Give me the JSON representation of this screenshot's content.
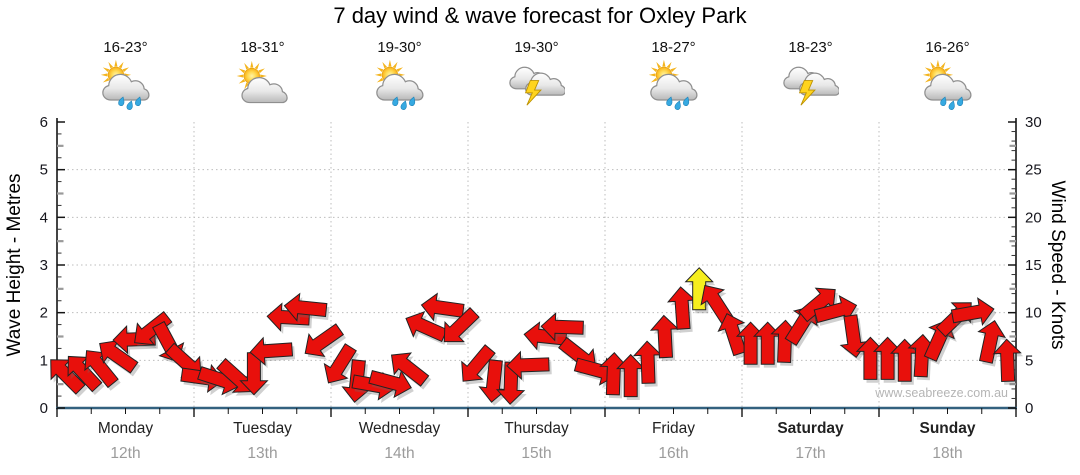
{
  "title": "7 day wind & wave forecast for Oxley Park",
  "watermark": "www.seabreeze.com.au",
  "days": [
    {
      "name": "Monday",
      "date": "12th",
      "temp": "16-23°",
      "icon": "sun-cloud-rain-icon",
      "weekend": false
    },
    {
      "name": "Tuesday",
      "date": "13th",
      "temp": "18-31°",
      "icon": "sun-cloud-icon",
      "weekend": false
    },
    {
      "name": "Wednesday",
      "date": "14th",
      "temp": "19-30°",
      "icon": "sun-cloud-rain-icon",
      "weekend": false
    },
    {
      "name": "Thursday",
      "date": "15th",
      "temp": "19-30°",
      "icon": "storm-cloud-icon",
      "weekend": false
    },
    {
      "name": "Friday",
      "date": "16th",
      "temp": "18-27°",
      "icon": "sun-cloud-rain-icon",
      "weekend": false
    },
    {
      "name": "Saturday",
      "date": "17th",
      "temp": "18-23°",
      "icon": "storm-cloud-icon",
      "weekend": true
    },
    {
      "name": "Sunday",
      "date": "18th",
      "temp": "16-26°",
      "icon": "sun-cloud-rain-icon",
      "weekend": true
    }
  ],
  "chart_data": {
    "type": "wind_arrow_timeseries",
    "title": "7 day wind & wave forecast for Oxley Park",
    "y_left": {
      "label": "Wave Height - Metres",
      "min": 0,
      "max": 6,
      "tick_step": 1
    },
    "y_right": {
      "label": "Wind Speed - Knots",
      "min": 0,
      "max": 30,
      "tick_step": 5
    },
    "points_per_day": 8,
    "point_interval_hours": 3,
    "wind_speed_knots": [
      3.5,
      3.8,
      4.3,
      5.5,
      7.2,
      8.2,
      6.8,
      4.8,
      3.2,
      3.0,
      3.2,
      3.6,
      6.0,
      9.5,
      10.5,
      7.0,
      4.5,
      2.8,
      2.4,
      2.7,
      4.2,
      8.5,
      10.5,
      8.5,
      4.5,
      2.8,
      2.6,
      4.5,
      7.5,
      8.5,
      5.5,
      4.0,
      3.6,
      3.4,
      4.8,
      7.5,
      10.5,
      12.5,
      11.0,
      7.8,
      6.8,
      6.8,
      7.0,
      8.8,
      11.0,
      10.2,
      7.5,
      5.2,
      5.2,
      5.0,
      5.5,
      7.2,
      9.5,
      10.0,
      7.0,
      5.0
    ],
    "wind_direction_deg_cw_from_east": [
      225,
      227,
      231,
      215,
      178,
      142,
      62,
      42,
      8,
      18,
      42,
      90,
      176,
      183,
      186,
      145,
      122,
      96,
      10,
      15,
      218,
      204,
      188,
      136,
      130,
      96,
      92,
      178,
      186,
      182,
      38,
      15,
      272,
      270,
      268,
      267,
      266,
      270,
      237,
      252,
      270,
      270,
      272,
      302,
      320,
      345,
      82,
      270,
      270,
      270,
      273,
      294,
      316,
      350,
      282,
      268
    ],
    "storm_point_index": 37,
    "grid": "dotted",
    "colors": {
      "arrow": "#e8100c",
      "storm_arrow": "#f6ee1e",
      "arrow_outline": "#222222",
      "grid": "#bdbdbd",
      "axis": "#151515",
      "x_axis_line": "#33617f",
      "tick_label": "#16161d",
      "day_label": "#222222",
      "date_label": "#9b9b9b",
      "watermark": "#b5b5b5"
    }
  }
}
